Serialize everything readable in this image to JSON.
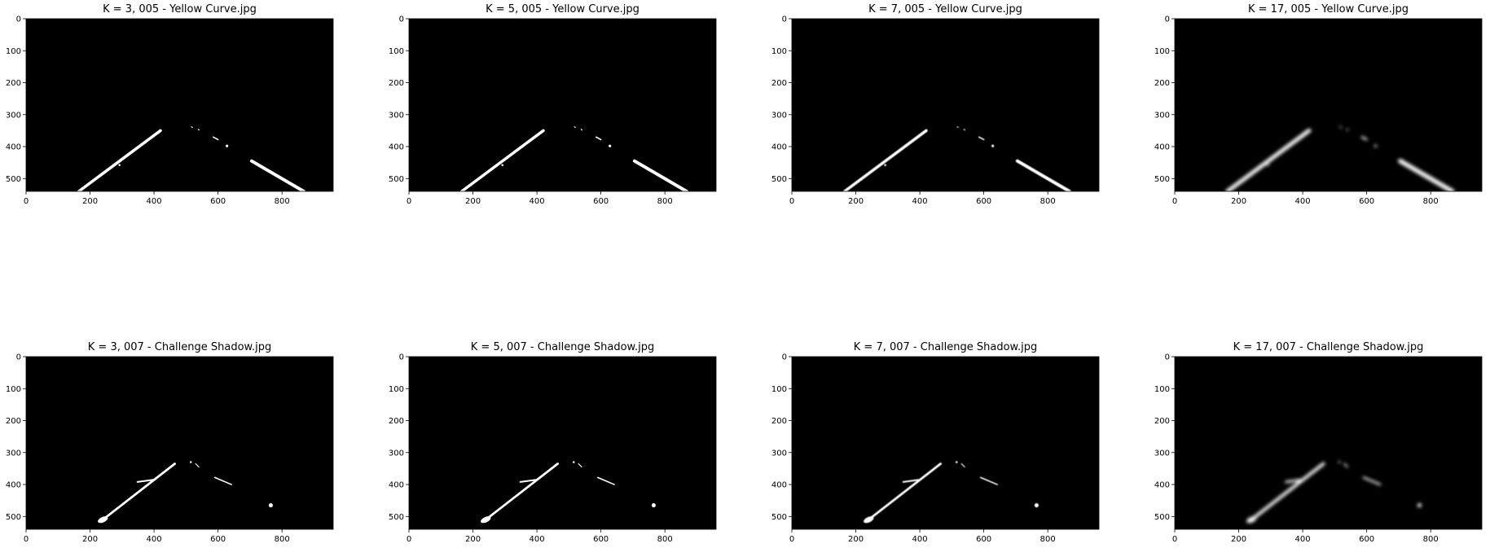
{
  "figure": {
    "panels": [
      {
        "title": "K = 3, 005 - Yellow Curve.jpg",
        "k": 3,
        "image": "005"
      },
      {
        "title": "K = 5, 005 - Yellow Curve.jpg",
        "k": 5,
        "image": "005"
      },
      {
        "title": "K = 7, 005 - Yellow Curve.jpg",
        "k": 7,
        "image": "005"
      },
      {
        "title": "K = 17, 005 - Yellow Curve.jpg",
        "k": 17,
        "image": "005"
      },
      {
        "title": "K = 3, 007 - Challenge Shadow.jpg",
        "k": 3,
        "image": "007"
      },
      {
        "title": "K = 5, 007 - Challenge Shadow.jpg",
        "k": 5,
        "image": "007"
      },
      {
        "title": "K = 7, 007 - Challenge Shadow.jpg",
        "k": 7,
        "image": "007"
      },
      {
        "title": "K = 17, 007 - Challenge Shadow.jpg",
        "k": 17,
        "image": "007"
      }
    ],
    "x_ticks": [
      "0",
      "200",
      "400",
      "600",
      "800"
    ],
    "y_ticks": [
      "0",
      "100",
      "200",
      "300",
      "400",
      "500"
    ],
    "x_range": [
      0,
      960
    ],
    "y_range": [
      0,
      540
    ],
    "colors": {
      "background": "#000000",
      "lane": "#ffffff",
      "figure": "#ffffff"
    }
  }
}
